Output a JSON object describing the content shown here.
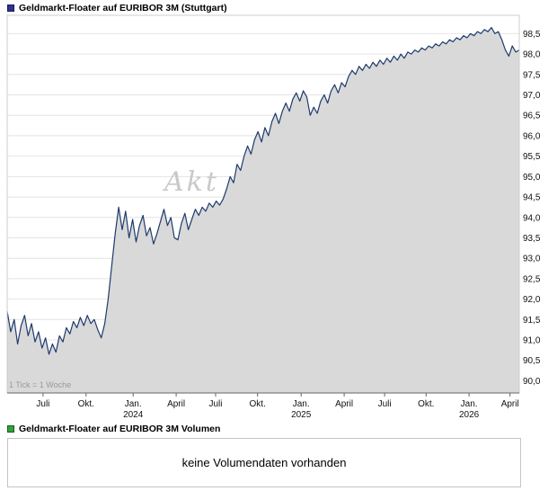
{
  "price_chart": {
    "title": "Geldmarkt-Floater auf EURIBOR 3M (Stuttgart)"
  },
  "volume_chart": {
    "title": "Geldmarkt-Floater auf EURIBOR 3M Volumen",
    "message": "keine Volumendaten vorhanden"
  },
  "colors": {
    "price_legend": "#2e3192",
    "volume_legend": "#2fa338",
    "line": "#1e3a6d",
    "fill": "#d9d9d9",
    "grid": "#e4e4e4",
    "axis": "#666666",
    "border": "#cccccc",
    "label": "#111111",
    "note": "#9a9a9a",
    "watermark": "#c9c9c9"
  },
  "chart_data": {
    "type": "area",
    "title": "Geldmarkt-Floater auf EURIBOR 3M (Stuttgart)",
    "tick_note": "1 Tick = 1 Woche",
    "watermark": "Akt",
    "xlabel": "",
    "ylabel": "",
    "grid": "horizontal",
    "legend_position": "none",
    "ylim": [
      89.7,
      98.95
    ],
    "y_ticks": [
      {
        "value": 90.0,
        "label": "90,0"
      },
      {
        "value": 90.5,
        "label": "90,5"
      },
      {
        "value": 91.0,
        "label": "91,0"
      },
      {
        "value": 91.5,
        "label": "91,5"
      },
      {
        "value": 92.0,
        "label": "92,0"
      },
      {
        "value": 92.5,
        "label": "92,5"
      },
      {
        "value": 93.0,
        "label": "93,0"
      },
      {
        "value": 93.5,
        "label": "93,5"
      },
      {
        "value": 94.0,
        "label": "94,0"
      },
      {
        "value": 94.5,
        "label": "94,5"
      },
      {
        "value": 95.0,
        "label": "95,0"
      },
      {
        "value": 95.5,
        "label": "95,5"
      },
      {
        "value": 96.0,
        "label": "96,0"
      },
      {
        "value": 96.5,
        "label": "96,5"
      },
      {
        "value": 97.0,
        "label": "97,0"
      },
      {
        "value": 97.5,
        "label": "97,5"
      },
      {
        "value": 98.0,
        "label": "98,0"
      },
      {
        "value": 98.5,
        "label": "98,5"
      }
    ],
    "x_ticks": [
      {
        "label": "Juli",
        "pos": 0.07
      },
      {
        "label": "Okt.",
        "pos": 0.154
      },
      {
        "label": "Jan.",
        "year": "2024",
        "pos": 0.246
      },
      {
        "label": "April",
        "pos": 0.33
      },
      {
        "label": "Juli",
        "pos": 0.407
      },
      {
        "label": "Okt.",
        "pos": 0.489
      },
      {
        "label": "Jan.",
        "year": "2025",
        "pos": 0.574
      },
      {
        "label": "April",
        "pos": 0.658
      },
      {
        "label": "Juli",
        "pos": 0.737
      },
      {
        "label": "Okt.",
        "pos": 0.818
      },
      {
        "label": "Jan.",
        "year": "2026",
        "pos": 0.902
      },
      {
        "label": "April",
        "pos": 0.982
      }
    ],
    "values": [
      91.7,
      91.2,
      91.5,
      90.9,
      91.35,
      91.6,
      91.1,
      91.4,
      90.95,
      91.2,
      90.8,
      91.05,
      90.65,
      90.9,
      90.7,
      91.1,
      90.95,
      91.3,
      91.15,
      91.45,
      91.3,
      91.55,
      91.35,
      91.6,
      91.4,
      91.5,
      91.25,
      91.05,
      91.4,
      92.0,
      92.8,
      93.6,
      94.25,
      93.7,
      94.15,
      93.5,
      93.95,
      93.4,
      93.8,
      94.05,
      93.55,
      93.75,
      93.35,
      93.6,
      93.9,
      94.2,
      93.8,
      94.0,
      93.5,
      93.45,
      93.85,
      94.1,
      93.7,
      93.95,
      94.2,
      94.05,
      94.25,
      94.15,
      94.35,
      94.25,
      94.4,
      94.3,
      94.45,
      94.7,
      95.0,
      94.85,
      95.3,
      95.15,
      95.5,
      95.75,
      95.55,
      95.9,
      96.1,
      95.85,
      96.2,
      96.0,
      96.35,
      96.55,
      96.3,
      96.6,
      96.8,
      96.6,
      96.9,
      97.05,
      96.85,
      97.1,
      96.95,
      96.5,
      96.7,
      96.55,
      96.85,
      97.0,
      96.8,
      97.1,
      97.25,
      97.05,
      97.3,
      97.2,
      97.45,
      97.6,
      97.5,
      97.7,
      97.6,
      97.75,
      97.65,
      97.8,
      97.7,
      97.85,
      97.75,
      97.9,
      97.8,
      97.95,
      97.85,
      98.0,
      97.9,
      98.05,
      98.0,
      98.1,
      98.05,
      98.15,
      98.1,
      98.2,
      98.15,
      98.25,
      98.2,
      98.3,
      98.25,
      98.35,
      98.3,
      98.4,
      98.35,
      98.45,
      98.4,
      98.5,
      98.45,
      98.55,
      98.5,
      98.6,
      98.55,
      98.65,
      98.5,
      98.55,
      98.35,
      98.1,
      97.95,
      98.2,
      98.05,
      98.1
    ]
  }
}
